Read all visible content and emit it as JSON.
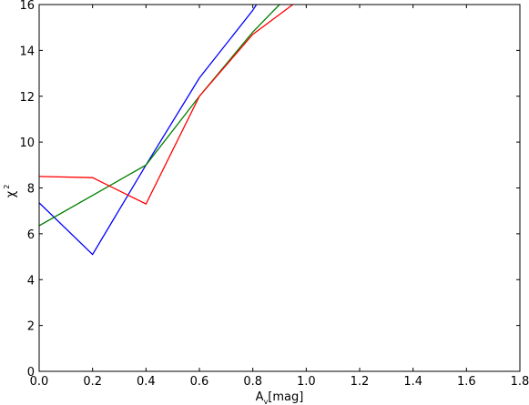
{
  "chart_data": {
    "type": "line",
    "xlabel": {
      "main": "A",
      "subscript": "v",
      "rest": "[mag]"
    },
    "ylabel": {
      "main": "χ",
      "superscript": "2"
    },
    "xlim": [
      0.0,
      1.8
    ],
    "ylim": [
      0,
      16
    ],
    "xticks": [
      "0.0",
      "0.2",
      "0.4",
      "0.6",
      "0.8",
      "1.0",
      "1.2",
      "1.4",
      "1.6",
      "1.8"
    ],
    "yticks": [
      "0",
      "2",
      "4",
      "6",
      "8",
      "10",
      "12",
      "14",
      "16"
    ],
    "grid": false,
    "series": [
      {
        "color": "#0000ff",
        "x": [
          0.0,
          0.2,
          0.4,
          0.6,
          0.8,
          0.83
        ],
        "y": [
          7.35,
          5.1,
          9.0,
          12.8,
          15.75,
          16.3
        ]
      },
      {
        "color": "#008000",
        "x": [
          0.0,
          0.4,
          0.6,
          0.8,
          0.9,
          0.95
        ],
        "y": [
          6.35,
          9.0,
          12.0,
          14.8,
          16.0,
          16.6
        ]
      },
      {
        "color": "#ff0000",
        "x": [
          0.0,
          0.2,
          0.4,
          0.6,
          0.8,
          0.95,
          1.0
        ],
        "y": [
          8.5,
          8.45,
          7.3,
          12.0,
          14.7,
          16.0,
          16.4
        ]
      }
    ]
  }
}
